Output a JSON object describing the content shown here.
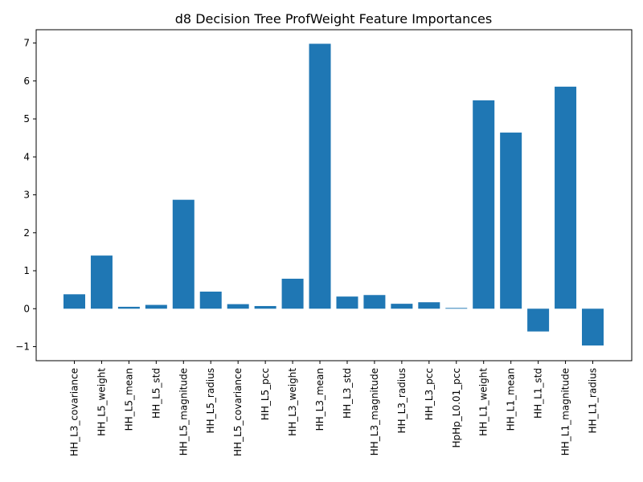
{
  "chart_data": {
    "type": "bar",
    "title": "d8 Decision Tree ProfWeight Feature Importances",
    "xlabel": "",
    "ylabel": "",
    "categories": [
      "HH_L3_covariance",
      "HH_L5_weight",
      "HH_L5_mean",
      "HH_L5_std",
      "HH_L5_magnitude",
      "HH_L5_radius",
      "HH_L5_covariance",
      "HH_L5_pcc",
      "HH_L3_weight",
      "HH_L3_mean",
      "HH_L3_std",
      "HH_L3_magnitude",
      "HH_L3_radius",
      "HH_L3_pcc",
      "HpHp_L0.01_pcc",
      "HH_L1_weight",
      "HH_L1_mean",
      "HH_L1_std",
      "HH_L1_magnitude",
      "HH_L1_radius"
    ],
    "values": [
      0.38,
      1.4,
      0.05,
      0.1,
      2.87,
      0.45,
      0.12,
      0.07,
      0.79,
      6.98,
      0.32,
      0.36,
      0.13,
      0.17,
      0.02,
      5.49,
      4.64,
      -0.6,
      5.85,
      -0.97
    ],
    "ylim": [
      -1.37,
      7.35
    ],
    "yticks": [
      -1,
      0,
      1,
      2,
      3,
      4,
      5,
      6,
      7
    ],
    "ytick_labels": [
      "−1",
      "0",
      "1",
      "2",
      "3",
      "4",
      "5",
      "6",
      "7"
    ],
    "bar_color": "#1f77b4",
    "grid": false,
    "legend": "none"
  }
}
